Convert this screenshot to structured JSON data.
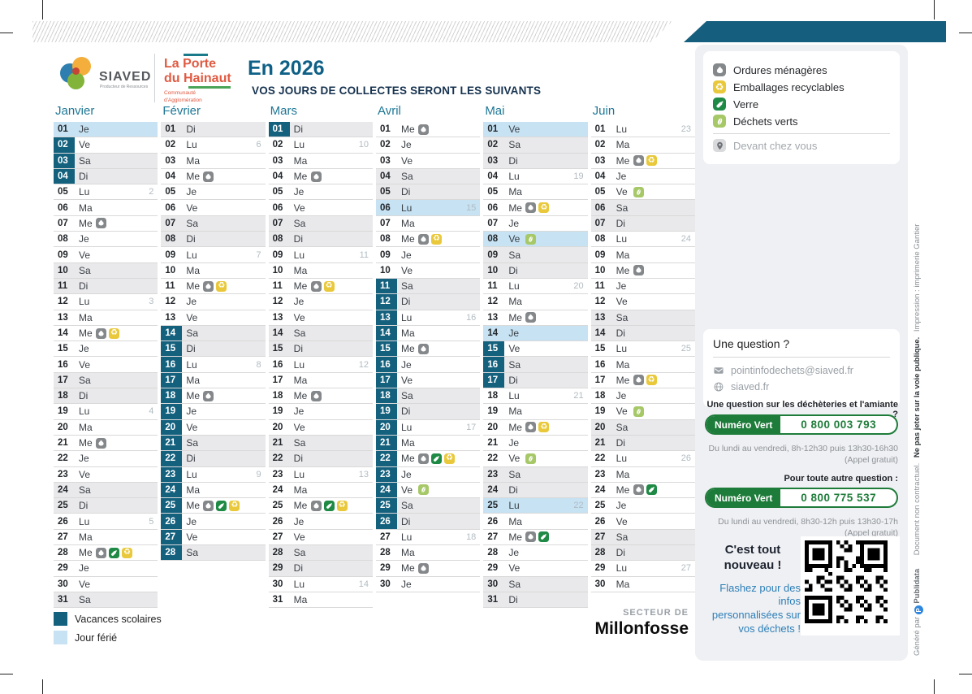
{
  "header": {
    "siaved_name": "SIAVED",
    "siaved_tagline": "Producteur de Ressources",
    "lph_line1": "La Porte",
    "lph_line2": "du Hainaut",
    "lph_tagline1": "Communauté",
    "lph_tagline2": "d'Agglomération",
    "title": "En 2026",
    "subtitle": "VOS JOURS DE COLLECTES SERONT LES SUIVANTS"
  },
  "legend": {
    "items": [
      {
        "icon": "om",
        "label": "Ordures ménagères"
      },
      {
        "icon": "er",
        "label": "Emballages recyclables"
      },
      {
        "icon": "ve",
        "label": "Verre"
      },
      {
        "icon": "dv",
        "label": "Déchets verts"
      }
    ],
    "location": {
      "icon": "pin",
      "label": "Devant chez vous"
    }
  },
  "calendar": {
    "months": [
      {
        "name": "Janvier",
        "days": [
          {
            "n": "01",
            "d": "Je",
            "h": 1
          },
          {
            "n": "02",
            "d": "Ve",
            "v": 1
          },
          {
            "n": "03",
            "d": "Sa",
            "v": 1,
            "e": 1
          },
          {
            "n": "04",
            "d": "Di",
            "v": 1,
            "e": 1
          },
          {
            "n": "05",
            "d": "Lu",
            "w": "2"
          },
          {
            "n": "06",
            "d": "Ma"
          },
          {
            "n": "07",
            "d": "Me",
            "i": [
              "om"
            ]
          },
          {
            "n": "08",
            "d": "Je"
          },
          {
            "n": "09",
            "d": "Ve"
          },
          {
            "n": "10",
            "d": "Sa",
            "e": 1
          },
          {
            "n": "11",
            "d": "Di",
            "e": 1
          },
          {
            "n": "12",
            "d": "Lu",
            "w": "3"
          },
          {
            "n": "13",
            "d": "Ma"
          },
          {
            "n": "14",
            "d": "Me",
            "i": [
              "om",
              "er"
            ]
          },
          {
            "n": "15",
            "d": "Je"
          },
          {
            "n": "16",
            "d": "Ve"
          },
          {
            "n": "17",
            "d": "Sa",
            "e": 1
          },
          {
            "n": "18",
            "d": "Di",
            "e": 1
          },
          {
            "n": "19",
            "d": "Lu",
            "w": "4"
          },
          {
            "n": "20",
            "d": "Ma"
          },
          {
            "n": "21",
            "d": "Me",
            "i": [
              "om"
            ]
          },
          {
            "n": "22",
            "d": "Je"
          },
          {
            "n": "23",
            "d": "Ve"
          },
          {
            "n": "24",
            "d": "Sa",
            "e": 1
          },
          {
            "n": "25",
            "d": "Di",
            "e": 1
          },
          {
            "n": "26",
            "d": "Lu",
            "w": "5"
          },
          {
            "n": "27",
            "d": "Ma"
          },
          {
            "n": "28",
            "d": "Me",
            "i": [
              "om",
              "ve",
              "er"
            ]
          },
          {
            "n": "29",
            "d": "Je"
          },
          {
            "n": "30",
            "d": "Ve"
          },
          {
            "n": "31",
            "d": "Sa",
            "e": 1
          }
        ]
      },
      {
        "name": "Février",
        "days": [
          {
            "n": "01",
            "d": "Di",
            "e": 1
          },
          {
            "n": "02",
            "d": "Lu",
            "w": "6"
          },
          {
            "n": "03",
            "d": "Ma"
          },
          {
            "n": "04",
            "d": "Me",
            "i": [
              "om"
            ]
          },
          {
            "n": "05",
            "d": "Je"
          },
          {
            "n": "06",
            "d": "Ve"
          },
          {
            "n": "07",
            "d": "Sa",
            "e": 1
          },
          {
            "n": "08",
            "d": "Di",
            "e": 1
          },
          {
            "n": "09",
            "d": "Lu",
            "w": "7"
          },
          {
            "n": "10",
            "d": "Ma"
          },
          {
            "n": "11",
            "d": "Me",
            "i": [
              "om",
              "er"
            ]
          },
          {
            "n": "12",
            "d": "Je"
          },
          {
            "n": "13",
            "d": "Ve"
          },
          {
            "n": "14",
            "d": "Sa",
            "v": 1,
            "e": 1
          },
          {
            "n": "15",
            "d": "Di",
            "v": 1,
            "e": 1
          },
          {
            "n": "16",
            "d": "Lu",
            "v": 1,
            "w": "8"
          },
          {
            "n": "17",
            "d": "Ma",
            "v": 1
          },
          {
            "n": "18",
            "d": "Me",
            "v": 1,
            "i": [
              "om"
            ]
          },
          {
            "n": "19",
            "d": "Je",
            "v": 1
          },
          {
            "n": "20",
            "d": "Ve",
            "v": 1
          },
          {
            "n": "21",
            "d": "Sa",
            "v": 1,
            "e": 1
          },
          {
            "n": "22",
            "d": "Di",
            "v": 1,
            "e": 1
          },
          {
            "n": "23",
            "d": "Lu",
            "v": 1,
            "w": "9"
          },
          {
            "n": "24",
            "d": "Ma",
            "v": 1
          },
          {
            "n": "25",
            "d": "Me",
            "v": 1,
            "i": [
              "om",
              "ve",
              "er"
            ]
          },
          {
            "n": "26",
            "d": "Je",
            "v": 1
          },
          {
            "n": "27",
            "d": "Ve",
            "v": 1
          },
          {
            "n": "28",
            "d": "Sa",
            "v": 1,
            "e": 1
          }
        ]
      },
      {
        "name": "Mars",
        "days": [
          {
            "n": "01",
            "d": "Di",
            "v": 1,
            "e": 1
          },
          {
            "n": "02",
            "d": "Lu",
            "w": "10"
          },
          {
            "n": "03",
            "d": "Ma"
          },
          {
            "n": "04",
            "d": "Me",
            "i": [
              "om"
            ]
          },
          {
            "n": "05",
            "d": "Je"
          },
          {
            "n": "06",
            "d": "Ve"
          },
          {
            "n": "07",
            "d": "Sa",
            "e": 1
          },
          {
            "n": "08",
            "d": "Di",
            "e": 1
          },
          {
            "n": "09",
            "d": "Lu",
            "w": "11"
          },
          {
            "n": "10",
            "d": "Ma"
          },
          {
            "n": "11",
            "d": "Me",
            "i": [
              "om",
              "er"
            ]
          },
          {
            "n": "12",
            "d": "Je"
          },
          {
            "n": "13",
            "d": "Ve"
          },
          {
            "n": "14",
            "d": "Sa",
            "e": 1
          },
          {
            "n": "15",
            "d": "Di",
            "e": 1
          },
          {
            "n": "16",
            "d": "Lu",
            "w": "12"
          },
          {
            "n": "17",
            "d": "Ma"
          },
          {
            "n": "18",
            "d": "Me",
            "i": [
              "om"
            ]
          },
          {
            "n": "19",
            "d": "Je"
          },
          {
            "n": "20",
            "d": "Ve"
          },
          {
            "n": "21",
            "d": "Sa",
            "e": 1
          },
          {
            "n": "22",
            "d": "Di",
            "e": 1
          },
          {
            "n": "23",
            "d": "Lu",
            "w": "13"
          },
          {
            "n": "24",
            "d": "Ma"
          },
          {
            "n": "25",
            "d": "Me",
            "i": [
              "om",
              "ve",
              "er"
            ]
          },
          {
            "n": "26",
            "d": "Je"
          },
          {
            "n": "27",
            "d": "Ve"
          },
          {
            "n": "28",
            "d": "Sa",
            "e": 1
          },
          {
            "n": "29",
            "d": "Di",
            "e": 1
          },
          {
            "n": "30",
            "d": "Lu",
            "w": "14"
          },
          {
            "n": "31",
            "d": "Ma"
          }
        ]
      },
      {
        "name": "Avril",
        "days": [
          {
            "n": "01",
            "d": "Me",
            "i": [
              "om"
            ]
          },
          {
            "n": "02",
            "d": "Je"
          },
          {
            "n": "03",
            "d": "Ve"
          },
          {
            "n": "04",
            "d": "Sa",
            "e": 1
          },
          {
            "n": "05",
            "d": "Di",
            "e": 1
          },
          {
            "n": "06",
            "d": "Lu",
            "h": 1,
            "w": "15"
          },
          {
            "n": "07",
            "d": "Ma"
          },
          {
            "n": "08",
            "d": "Me",
            "i": [
              "om",
              "er"
            ]
          },
          {
            "n": "09",
            "d": "Je"
          },
          {
            "n": "10",
            "d": "Ve"
          },
          {
            "n": "11",
            "d": "Sa",
            "v": 1,
            "e": 1
          },
          {
            "n": "12",
            "d": "Di",
            "v": 1,
            "e": 1
          },
          {
            "n": "13",
            "d": "Lu",
            "v": 1,
            "w": "16"
          },
          {
            "n": "14",
            "d": "Ma",
            "v": 1
          },
          {
            "n": "15",
            "d": "Me",
            "v": 1,
            "i": [
              "om"
            ]
          },
          {
            "n": "16",
            "d": "Je",
            "v": 1
          },
          {
            "n": "17",
            "d": "Ve",
            "v": 1
          },
          {
            "n": "18",
            "d": "Sa",
            "v": 1,
            "e": 1
          },
          {
            "n": "19",
            "d": "Di",
            "v": 1,
            "e": 1
          },
          {
            "n": "20",
            "d": "Lu",
            "v": 1,
            "w": "17"
          },
          {
            "n": "21",
            "d": "Ma",
            "v": 1
          },
          {
            "n": "22",
            "d": "Me",
            "v": 1,
            "i": [
              "om",
              "ve",
              "er"
            ]
          },
          {
            "n": "23",
            "d": "Je",
            "v": 1
          },
          {
            "n": "24",
            "d": "Ve",
            "v": 1,
            "i": [
              "dv"
            ]
          },
          {
            "n": "25",
            "d": "Sa",
            "v": 1,
            "e": 1
          },
          {
            "n": "26",
            "d": "Di",
            "v": 1,
            "e": 1
          },
          {
            "n": "27",
            "d": "Lu",
            "w": "18"
          },
          {
            "n": "28",
            "d": "Ma"
          },
          {
            "n": "29",
            "d": "Me",
            "i": [
              "om"
            ]
          },
          {
            "n": "30",
            "d": "Je"
          }
        ]
      },
      {
        "name": "Mai",
        "days": [
          {
            "n": "01",
            "d": "Ve",
            "h": 1
          },
          {
            "n": "02",
            "d": "Sa",
            "e": 1
          },
          {
            "n": "03",
            "d": "Di",
            "e": 1
          },
          {
            "n": "04",
            "d": "Lu",
            "w": "19"
          },
          {
            "n": "05",
            "d": "Ma"
          },
          {
            "n": "06",
            "d": "Me",
            "i": [
              "om",
              "er"
            ]
          },
          {
            "n": "07",
            "d": "Je"
          },
          {
            "n": "08",
            "d": "Ve",
            "h": 1,
            "i": [
              "dv"
            ]
          },
          {
            "n": "09",
            "d": "Sa",
            "e": 1
          },
          {
            "n": "10",
            "d": "Di",
            "e": 1
          },
          {
            "n": "11",
            "d": "Lu",
            "w": "20"
          },
          {
            "n": "12",
            "d": "Ma"
          },
          {
            "n": "13",
            "d": "Me",
            "i": [
              "om"
            ]
          },
          {
            "n": "14",
            "d": "Je",
            "h": 1
          },
          {
            "n": "15",
            "d": "Ve",
            "v": 1
          },
          {
            "n": "16",
            "d": "Sa",
            "v": 1,
            "e": 1
          },
          {
            "n": "17",
            "d": "Di",
            "v": 1,
            "e": 1
          },
          {
            "n": "18",
            "d": "Lu",
            "w": "21"
          },
          {
            "n": "19",
            "d": "Ma"
          },
          {
            "n": "20",
            "d": "Me",
            "i": [
              "om",
              "er"
            ]
          },
          {
            "n": "21",
            "d": "Je"
          },
          {
            "n": "22",
            "d": "Ve",
            "i": [
              "dv"
            ]
          },
          {
            "n": "23",
            "d": "Sa",
            "e": 1
          },
          {
            "n": "24",
            "d": "Di",
            "e": 1
          },
          {
            "n": "25",
            "d": "Lu",
            "h": 1,
            "w": "22"
          },
          {
            "n": "26",
            "d": "Ma"
          },
          {
            "n": "27",
            "d": "Me",
            "i": [
              "om",
              "ve"
            ]
          },
          {
            "n": "28",
            "d": "Je"
          },
          {
            "n": "29",
            "d": "Ve"
          },
          {
            "n": "30",
            "d": "Sa",
            "e": 1
          },
          {
            "n": "31",
            "d": "Di",
            "e": 1
          }
        ]
      },
      {
        "name": "Juin",
        "days": [
          {
            "n": "01",
            "d": "Lu",
            "w": "23"
          },
          {
            "n": "02",
            "d": "Ma"
          },
          {
            "n": "03",
            "d": "Me",
            "i": [
              "om",
              "er"
            ]
          },
          {
            "n": "04",
            "d": "Je"
          },
          {
            "n": "05",
            "d": "Ve",
            "i": [
              "dv"
            ]
          },
          {
            "n": "06",
            "d": "Sa",
            "e": 1
          },
          {
            "n": "07",
            "d": "Di",
            "e": 1
          },
          {
            "n": "08",
            "d": "Lu",
            "w": "24"
          },
          {
            "n": "09",
            "d": "Ma"
          },
          {
            "n": "10",
            "d": "Me",
            "i": [
              "om"
            ]
          },
          {
            "n": "11",
            "d": "Je"
          },
          {
            "n": "12",
            "d": "Ve"
          },
          {
            "n": "13",
            "d": "Sa",
            "e": 1
          },
          {
            "n": "14",
            "d": "Di",
            "e": 1
          },
          {
            "n": "15",
            "d": "Lu",
            "w": "25"
          },
          {
            "n": "16",
            "d": "Ma"
          },
          {
            "n": "17",
            "d": "Me",
            "i": [
              "om",
              "er"
            ]
          },
          {
            "n": "18",
            "d": "Je"
          },
          {
            "n": "19",
            "d": "Ve",
            "i": [
              "dv"
            ]
          },
          {
            "n": "20",
            "d": "Sa",
            "e": 1
          },
          {
            "n": "21",
            "d": "Di",
            "e": 1
          },
          {
            "n": "22",
            "d": "Lu",
            "w": "26"
          },
          {
            "n": "23",
            "d": "Ma"
          },
          {
            "n": "24",
            "d": "Me",
            "i": [
              "om",
              "ve"
            ]
          },
          {
            "n": "25",
            "d": "Je"
          },
          {
            "n": "26",
            "d": "Ve"
          },
          {
            "n": "27",
            "d": "Sa",
            "e": 1
          },
          {
            "n": "28",
            "d": "Di",
            "e": 1
          },
          {
            "n": "29",
            "d": "Lu",
            "w": "27"
          },
          {
            "n": "30",
            "d": "Ma"
          }
        ]
      }
    ]
  },
  "footer": {
    "vacances_label": "Vacances scolaires",
    "ferie_label": "Jour férié",
    "sector_prefix": "SECTEUR DE",
    "sector_name": "Millonfosse"
  },
  "sidebar": {
    "question_title": "Une question ?",
    "email": "pointinfodechets@siaved.fr",
    "website": "siaved.fr",
    "q1": "Une question sur les déchèteries et l'amiante ?",
    "numero_vert_label": "Numéro Vert",
    "phone1": "0 800 003 793",
    "hours1": "Du lundi au vendredi, 8h-12h30 puis 13h30-16h30",
    "free1": "(Appel gratuit)",
    "q2": "Pour toute autre question :",
    "phone2": "0 800 775 537",
    "hours2": "Du lundi au vendredi, 8h30-12h puis 13h30-17h",
    "free2": "(Appel gratuit)",
    "new_title1": "C'est tout",
    "new_title2": "nouveau !",
    "new_text": "Flashez pour des infos personnalisées sur vos déchets !"
  },
  "sidetext": {
    "generated": "Généré par",
    "publidata": "Publidata",
    "non_contractual": "Document non contractuel.",
    "no_litter": "Ne pas jeter sur la voie publique.",
    "printing": "Impression : imprimerie Gantier"
  },
  "colors": {
    "vacances": "#14617E",
    "ferie": "#C6E2F3",
    "weekend_row": "#E9E9EB",
    "band_teal": "#155E7D",
    "om": "#85888B",
    "er": "#E9C93B",
    "ve": "#1F8A45",
    "dv": "#A6C867",
    "pin": "#D9DADB",
    "numero_vert": "#1E7C3A",
    "month_header": "#1E7795",
    "title_blue": "#0E6086",
    "flash_blue": "#2D7FB8"
  }
}
